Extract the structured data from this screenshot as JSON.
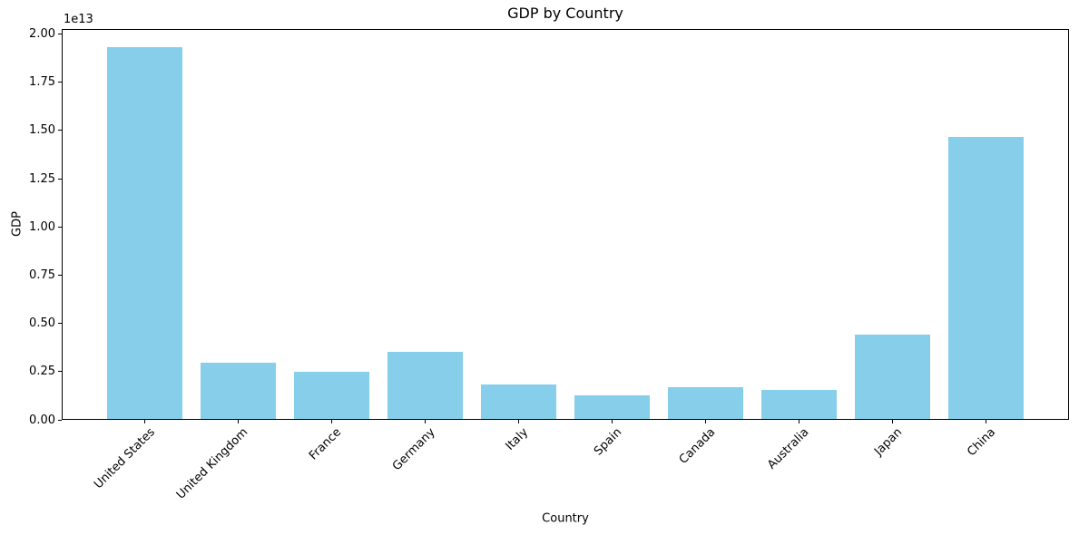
{
  "chart_data": {
    "type": "bar",
    "title": "GDP by Country",
    "xlabel": "Country",
    "ylabel": "GDP",
    "y_offset_label": "1e13",
    "categories": [
      "United States",
      "United Kingdom",
      "France",
      "Germany",
      "Italy",
      "Spain",
      "Canada",
      "Australia",
      "Japan",
      "China"
    ],
    "values": [
      19300000000000,
      2900000000000,
      2450000000000,
      3470000000000,
      1780000000000,
      1240000000000,
      1630000000000,
      1520000000000,
      4390000000000,
      14630000000000
    ],
    "bar_color": "#87CEEB",
    "ylim": [
      0,
      20265000000000
    ],
    "ytick_values": [
      0,
      2500000000000,
      5000000000000,
      7500000000000,
      10000000000000,
      12500000000000,
      15000000000000,
      17500000000000,
      20000000000000
    ],
    "ytick_labels": [
      "0.00",
      "0.25",
      "0.50",
      "0.75",
      "1.00",
      "1.25",
      "1.50",
      "1.75",
      "2.00"
    ],
    "grid": false,
    "legend_position": "none",
    "bar_relative_width": 0.8
  }
}
